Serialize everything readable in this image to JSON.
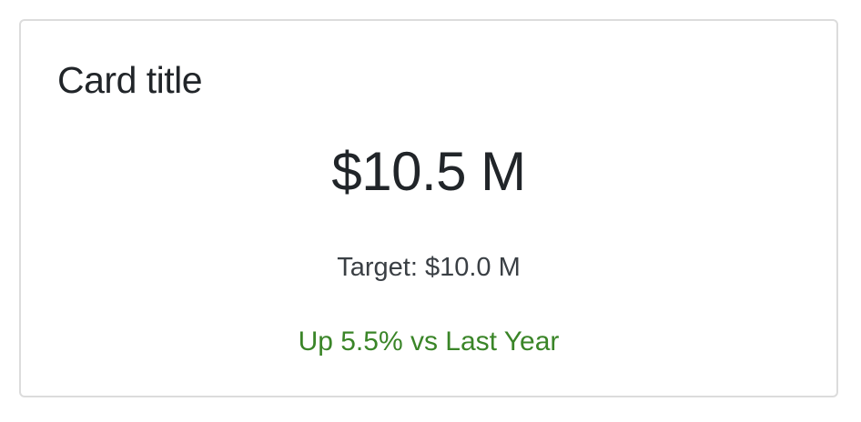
{
  "card": {
    "title": "Card title",
    "value": "$10.5 M",
    "target": "Target: $10.0 M",
    "change": "Up 5.5% vs Last Year"
  },
  "colors": {
    "text": "#212529",
    "positive": "#3a8528",
    "border": "#dcdcdc"
  }
}
